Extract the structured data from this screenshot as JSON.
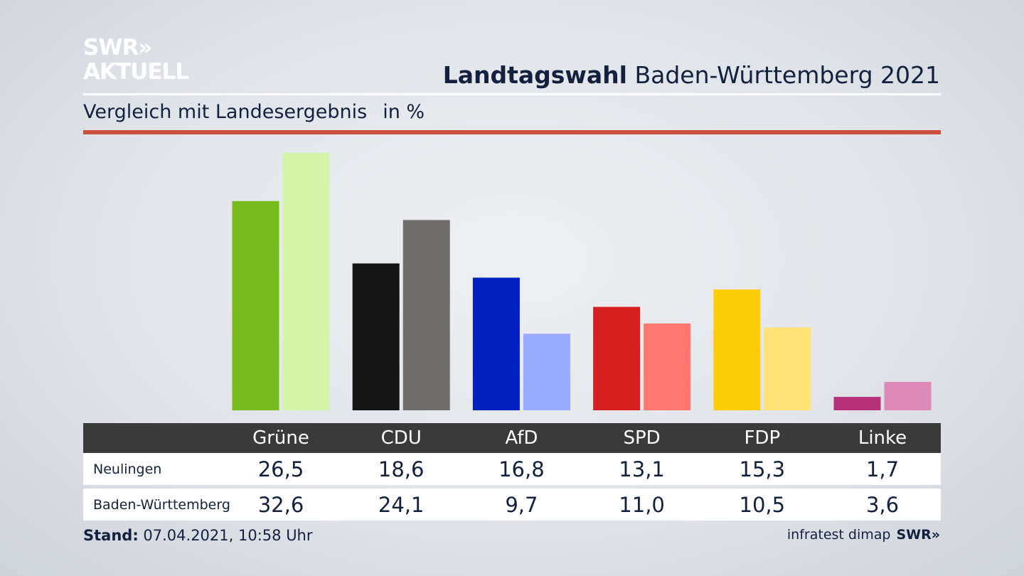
{
  "brand": {
    "line1": "SWR",
    "arrows": "»",
    "line2": "AKTUELL"
  },
  "header": {
    "title_bold": "Landtagswahl",
    "title_rest": "Baden-Württemberg 2021"
  },
  "subtitle": {
    "text": "Vergleich mit Landesergebnis",
    "unit": "in %"
  },
  "colors": {
    "accent_rule": "#c9503c",
    "table_header_bg": "#3a3a3a",
    "text": "#13213f"
  },
  "chart_data": {
    "type": "bar",
    "title": "Vergleich mit Landesergebnis",
    "ylabel": "in %",
    "categories": [
      "Grüne",
      "CDU",
      "AfD",
      "SPD",
      "FDP",
      "Linke"
    ],
    "series": [
      {
        "name": "Neulingen",
        "values": [
          26.5,
          18.6,
          16.8,
          13.1,
          15.3,
          1.7
        ],
        "labels": [
          "26,5",
          "18,6",
          "16,8",
          "13,1",
          "15,3",
          "1,7"
        ],
        "colors": [
          "#78bc1c",
          "#141414",
          "#0020c2",
          "#d61f1f",
          "#ffcc0a",
          "#b8307a"
        ]
      },
      {
        "name": "Baden-Württemberg",
        "values": [
          32.6,
          24.1,
          9.7,
          11.0,
          10.5,
          3.6
        ],
        "labels": [
          "32,6",
          "24,1",
          "9,7",
          "11,0",
          "10,5",
          "3,6"
        ],
        "colors": [
          "#d3f5a8",
          "#6f6d6c",
          "#9aaafe",
          "#ff7770",
          "#ffe275",
          "#de8ab8"
        ]
      }
    ],
    "ylim": [
      0,
      32.6
    ]
  },
  "footer": {
    "stand_label": "Stand:",
    "stand_value": "07.04.2021, 10:58 Uhr",
    "source": "infratest dimap",
    "source_brand": "SWR»"
  }
}
